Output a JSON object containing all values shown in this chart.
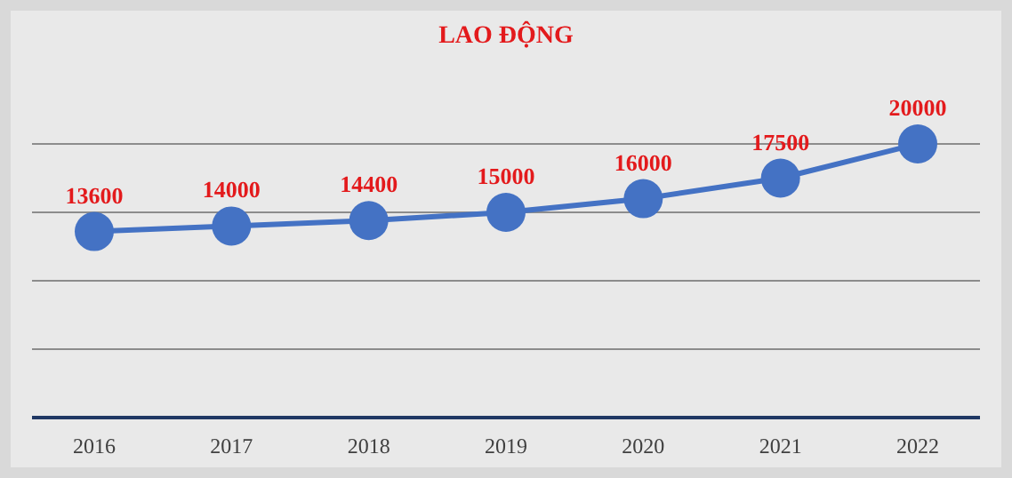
{
  "chart_data": {
    "type": "line",
    "title": "LAO ĐỘNG",
    "categories": [
      "2016",
      "2017",
      "2018",
      "2019",
      "2020",
      "2021",
      "2022"
    ],
    "series": [
      {
        "color": "#4472c4",
        "values": [
          13600,
          14000,
          14400,
          15000,
          16000,
          17500,
          20000
        ]
      }
    ],
    "ylim": [
      0,
      20000
    ],
    "yticks": [
      {
        "value": 0,
        "label": null
      },
      {
        "value": 5000,
        "label": null
      },
      {
        "value": 10000,
        "label": null
      },
      {
        "value": 15000,
        "label": null
      },
      {
        "value": 20000,
        "label": null
      }
    ],
    "tick_labels": "x",
    "grid": "y",
    "marker": "circle",
    "line_style": "solid",
    "data_labels": true
  }
}
